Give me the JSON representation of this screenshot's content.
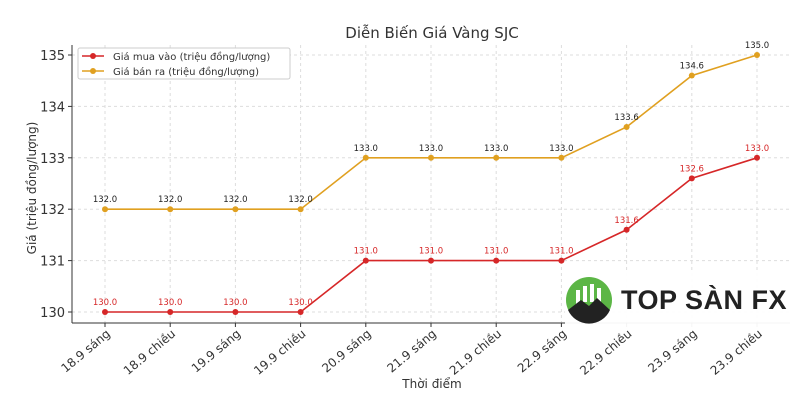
{
  "chart_data": {
    "type": "line",
    "title": "Diễn Biến Giá Vàng SJC",
    "xlabel": "Thời điểm",
    "ylabel": "Giá (triệu đồng/lượng)",
    "categories": [
      "18.9 sáng",
      "18.9 chiều",
      "19.9 sáng",
      "19.9 chiều",
      "20.9 sáng",
      "21.9 sáng",
      "21.9 chiều",
      "22.9 sáng",
      "22.9 chiều",
      "23.9 sáng",
      "23.9 chiều"
    ],
    "yticks": [
      "130",
      "131",
      "132",
      "133",
      "134",
      "135"
    ],
    "ylim": [
      129.8,
      135.2
    ],
    "grid": true,
    "legend_position": "top-left",
    "series": [
      {
        "name": "Giá mua vào (triệu đồng/lượng)",
        "color": "#d62728",
        "values": [
          130.0,
          130.0,
          130.0,
          130.0,
          131.0,
          131.0,
          131.0,
          131.0,
          131.6,
          132.6,
          133.0
        ],
        "labels": [
          "130.0",
          "130.0",
          "130.0",
          "130.0",
          "131.0",
          "131.0",
          "131.0",
          "131.0",
          "131.6",
          "132.6",
          "133.0"
        ]
      },
      {
        "name": "Giá bán ra (triệu đồng/lượng)",
        "color": "#e0a020",
        "values": [
          132.0,
          132.0,
          132.0,
          132.0,
          133.0,
          133.0,
          133.0,
          133.0,
          133.6,
          134.6,
          135.0
        ],
        "labels": [
          "132.0",
          "132.0",
          "132.0",
          "132.0",
          "133.0",
          "133.0",
          "133.0",
          "133.0",
          "133.6",
          "134.6",
          "135.0"
        ]
      }
    ]
  },
  "watermark": {
    "text": "TOP SÀN FX"
  }
}
